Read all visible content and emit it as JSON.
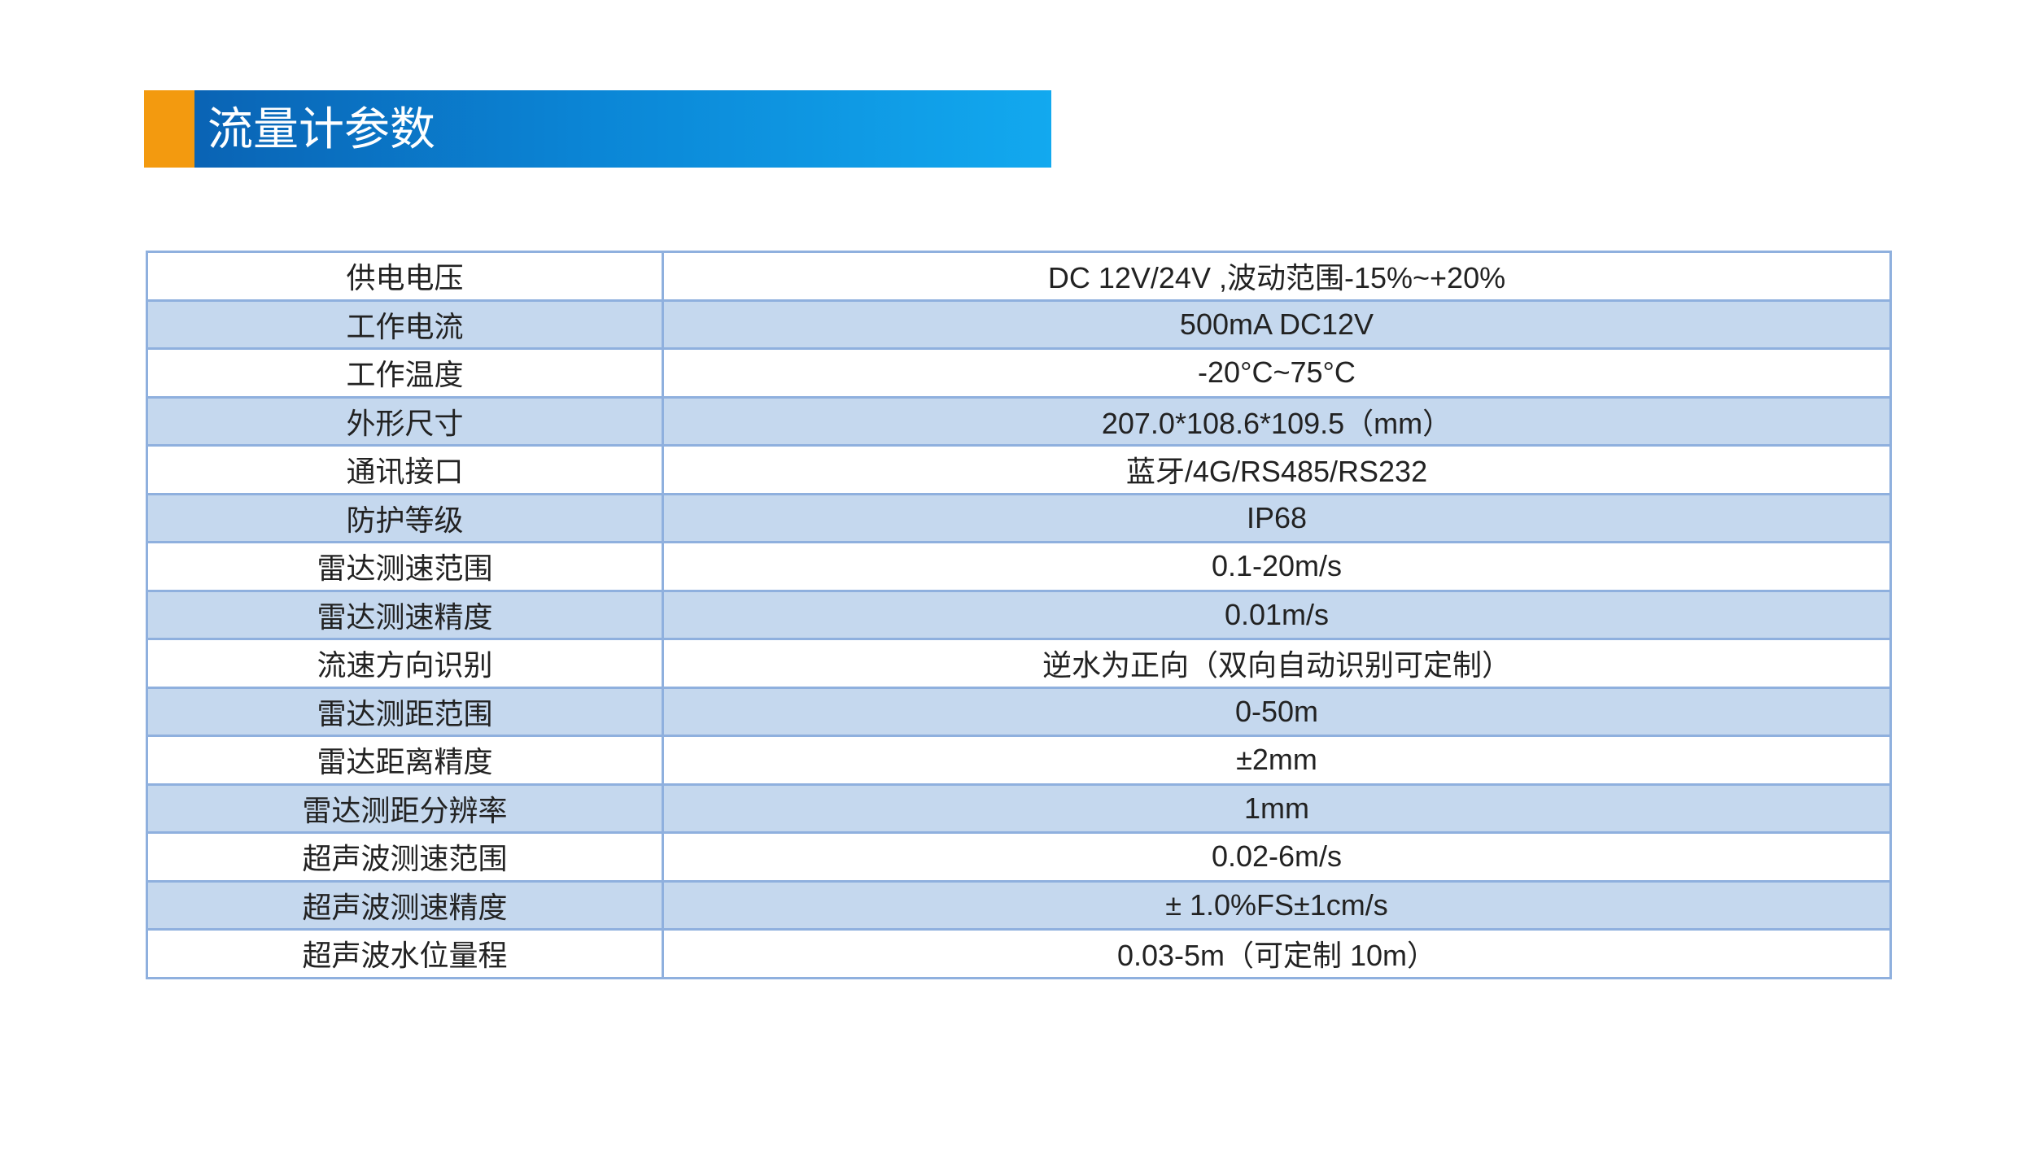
{
  "header": {
    "title": "流量计参数"
  },
  "table": {
    "rows": [
      [
        "供电电压",
        "DC 12V/24V ,波动范围-15%~+20%"
      ],
      [
        "工作电流",
        "500mA  DC12V"
      ],
      [
        "工作温度",
        "-20°C~75°C"
      ],
      [
        "外形尺寸",
        "207.0*108.6*109.5（mm）"
      ],
      [
        "通讯接口",
        "蓝牙/4G/RS485/RS232"
      ],
      [
        "防护等级",
        "IP68"
      ],
      [
        "雷达测速范围",
        "0.1-20m/s"
      ],
      [
        "雷达测速精度",
        "0.01m/s"
      ],
      [
        "流速方向识别",
        "逆水为正向（双向自动识别可定制）"
      ],
      [
        "雷达测距范围",
        "0-50m"
      ],
      [
        "雷达距离精度",
        "±2mm"
      ],
      [
        "雷达测距分辨率",
        "1mm"
      ],
      [
        "超声波测速范围",
        "0.02-6m/s"
      ],
      [
        "超声波测速精度",
        "± 1.0%FS±1cm/s"
      ],
      [
        "超声波水位量程",
        "0.03-5m（可定制 10m）"
      ]
    ]
  }
}
